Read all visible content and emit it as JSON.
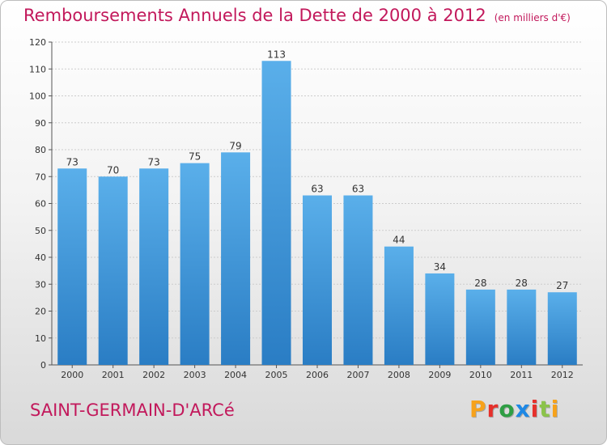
{
  "title": {
    "main": "Remboursements Annuels de la Dette de 2000 à 2012",
    "unit": "(en milliers d'€)"
  },
  "commune": "SAINT-GERMAIN-D'ARCé",
  "logo": {
    "text": "Proxiti",
    "colors": [
      "#f7a21b",
      "#e6302b",
      "#2f9e44",
      "#1e88e5",
      "#e6302b",
      "#8bc34a",
      "#f7a21b"
    ]
  },
  "colors": {
    "title": "#c2185b",
    "bar_top": "#5aafea",
    "bar_bottom": "#2a7dc4",
    "grid": "#cccccc",
    "axis": "#555555"
  },
  "chart_data": {
    "type": "bar",
    "categories": [
      "2000",
      "2001",
      "2002",
      "2003",
      "2004",
      "2005",
      "2006",
      "2007",
      "2008",
      "2009",
      "2010",
      "2011",
      "2012"
    ],
    "values": [
      73,
      70,
      73,
      75,
      79,
      113,
      63,
      63,
      44,
      34,
      28,
      28,
      27
    ],
    "ylim": [
      0,
      120
    ],
    "yticks": [
      0,
      10,
      20,
      30,
      40,
      50,
      60,
      70,
      80,
      90,
      100,
      110,
      120
    ],
    "grid": true,
    "data_labels": true
  }
}
